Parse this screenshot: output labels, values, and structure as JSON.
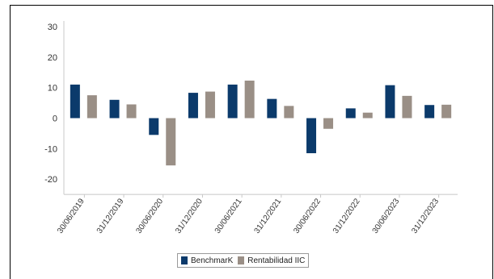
{
  "chart_data": {
    "type": "bar",
    "categories": [
      "30/06/2019",
      "31/12/2019",
      "30/06/2020",
      "31/12/2020",
      "30/06/2021",
      "31/12/2021",
      "30/06/2022",
      "31/12/2022",
      "30/06/2023",
      "31/12/2023"
    ],
    "series": [
      {
        "name": "BenchmarK",
        "color": "#0b3a6b",
        "values": [
          11.0,
          6.0,
          -5.5,
          8.3,
          11.0,
          6.3,
          -11.5,
          3.2,
          10.8,
          4.3
        ]
      },
      {
        "name": "Rentabilidad IIC",
        "color": "#9a8f86",
        "values": [
          7.5,
          4.5,
          -15.5,
          8.7,
          12.3,
          4.0,
          -3.5,
          1.8,
          7.3,
          4.4
        ]
      }
    ],
    "ylim": [
      -25,
      30
    ],
    "yticks": [
      30,
      20,
      10,
      0,
      -10,
      -20
    ],
    "grid": false,
    "legend_position": "bottom-center"
  }
}
